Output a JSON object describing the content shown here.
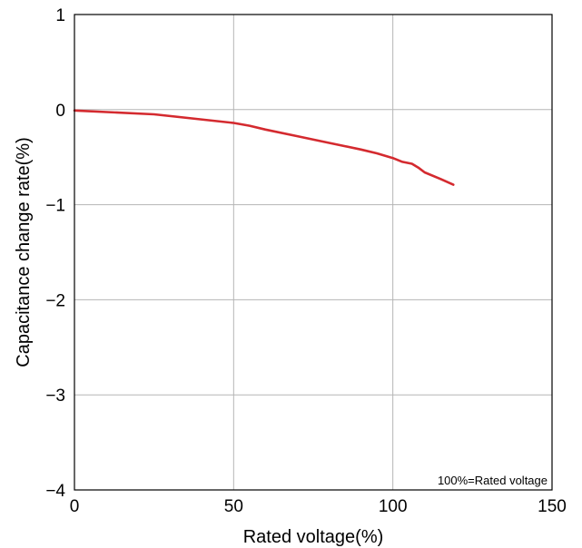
{
  "chart_data": {
    "type": "line",
    "title": "",
    "xlabel": "Rated voltage(%)",
    "ylabel": "Capacitance change rate(%)",
    "xlim": [
      0,
      150
    ],
    "ylim": [
      -4,
      1
    ],
    "xticks": [
      0,
      50,
      100,
      150
    ],
    "yticks": [
      1,
      0,
      -1,
      -2,
      -3,
      -4
    ],
    "xtick_labels": [
      "0",
      "50",
      "100",
      "150"
    ],
    "ytick_labels": [
      "1",
      "0",
      "−1",
      "−2",
      "−3",
      "−4"
    ],
    "grid": true,
    "annotation": "100%=Rated voltage",
    "series": [
      {
        "color": "#d42a2f",
        "x": [
          0,
          25,
          50,
          55,
          60,
          70,
          80,
          90,
          95,
          100,
          103,
          106,
          108,
          110,
          115,
          119
        ],
        "y": [
          -0.01,
          -0.05,
          -0.14,
          -0.17,
          -0.21,
          -0.28,
          -0.35,
          -0.42,
          -0.46,
          -0.51,
          -0.55,
          -0.57,
          -0.61,
          -0.66,
          -0.73,
          -0.79
        ]
      }
    ]
  }
}
